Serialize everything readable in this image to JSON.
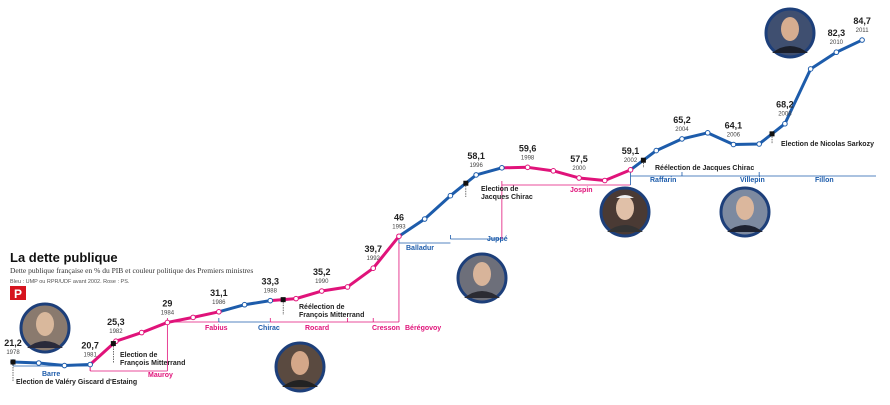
{
  "chart_data": {
    "type": "line",
    "title": "La dette publique",
    "subtitle": "Dette publique française en % du PIB et couleur politique des Premiers ministres",
    "note": "Bleu : UMP ou RPR/UDF avant 2002. Rose : PS.",
    "logo": "P",
    "categories": [
      "1978",
      null,
      null,
      "1981",
      "1982",
      null,
      "1984",
      null,
      "1986",
      null,
      "1988",
      null,
      "1990",
      null,
      "1992",
      "1993",
      null,
      null,
      "1996",
      null,
      "1998",
      null,
      "2000",
      null,
      "2002",
      null,
      "2004",
      null,
      "2006",
      null,
      "2008",
      null,
      "2010",
      "2011"
    ],
    "series": [
      {
        "name": null,
        "values": [
          21.2,
          21.0,
          20.5,
          20.7,
          25.3,
          27.0,
          29,
          30.0,
          31.1,
          32.5,
          33.3,
          33.7,
          35.2,
          36.0,
          39.7,
          46,
          49.4,
          54.0,
          58.1,
          59.5,
          59.6,
          58.9,
          57.5,
          57.0,
          59.1,
          62.9,
          65.2,
          66.4,
          64.1,
          64.2,
          68.2,
          79.0,
          82.3,
          84.7
        ],
        "value_labels": [
          "21,2",
          null,
          null,
          "20,7",
          "25,3",
          null,
          "29",
          null,
          "31,1",
          null,
          "33,3",
          null,
          "35,2",
          null,
          "39,7",
          "46",
          null,
          null,
          "58,1",
          null,
          "59,6",
          null,
          "57,5",
          null,
          "59,1",
          null,
          "65,2",
          null,
          "64,1",
          null,
          "68,2",
          null,
          "82,3",
          "84,7"
        ],
        "segment_colors": [
          "#1d5cab",
          "#1d5cab",
          "#1d5cab",
          "#e0137a",
          "#e0137a",
          "#e0137a",
          "#e0137a",
          "#e0137a",
          "#1d5cab",
          "#1d5cab",
          "#e0137a",
          "#e0137a",
          "#e0137a",
          "#e0137a",
          "#e0137a",
          "#1d5cab",
          "#1d5cab",
          "#1d5cab",
          "#1d5cab",
          "#e0137a",
          "#e0137a",
          "#e0137a",
          "#e0137a",
          "#e0137a",
          "#1d5cab",
          "#1d5cab",
          "#1d5cab",
          "#1d5cab",
          "#1d5cab",
          "#1d5cab",
          "#1d5cab",
          "#1d5cab",
          "#1d5cab"
        ]
      }
    ],
    "prime_ministers": [
      {
        "name": "Barre",
        "color": "#1d5cab"
      },
      {
        "name": "Mauroy",
        "color": "#e0137a"
      },
      {
        "name": "Fabius",
        "color": "#e0137a"
      },
      {
        "name": "Chirac",
        "color": "#1d5cab"
      },
      {
        "name": "Rocard",
        "color": "#e0137a"
      },
      {
        "name": "Cresson",
        "color": "#e0137a"
      },
      {
        "name": "Bérégovoy",
        "color": "#e0137a"
      },
      {
        "name": "Balladur",
        "color": "#1d5cab"
      },
      {
        "name": "Juppé",
        "color": "#1d5cab"
      },
      {
        "name": "Jospin",
        "color": "#e0137a"
      },
      {
        "name": "Raffarin",
        "color": "#1d5cab"
      },
      {
        "name": "Villepin",
        "color": "#1d5cab"
      },
      {
        "name": "Fillon",
        "color": "#1d5cab"
      }
    ],
    "annotations": [
      [
        "Election de Valéry Giscard d'Estaing"
      ],
      [
        "Election de",
        "François Mitterrand"
      ],
      [
        "Réélection de",
        "François Mitterrand"
      ],
      [
        "Election de",
        "Jacques Chirac"
      ],
      [
        "Réélection de Jacques Chirac"
      ],
      [
        "Election de Nicolas Sarkozy"
      ]
    ]
  }
}
